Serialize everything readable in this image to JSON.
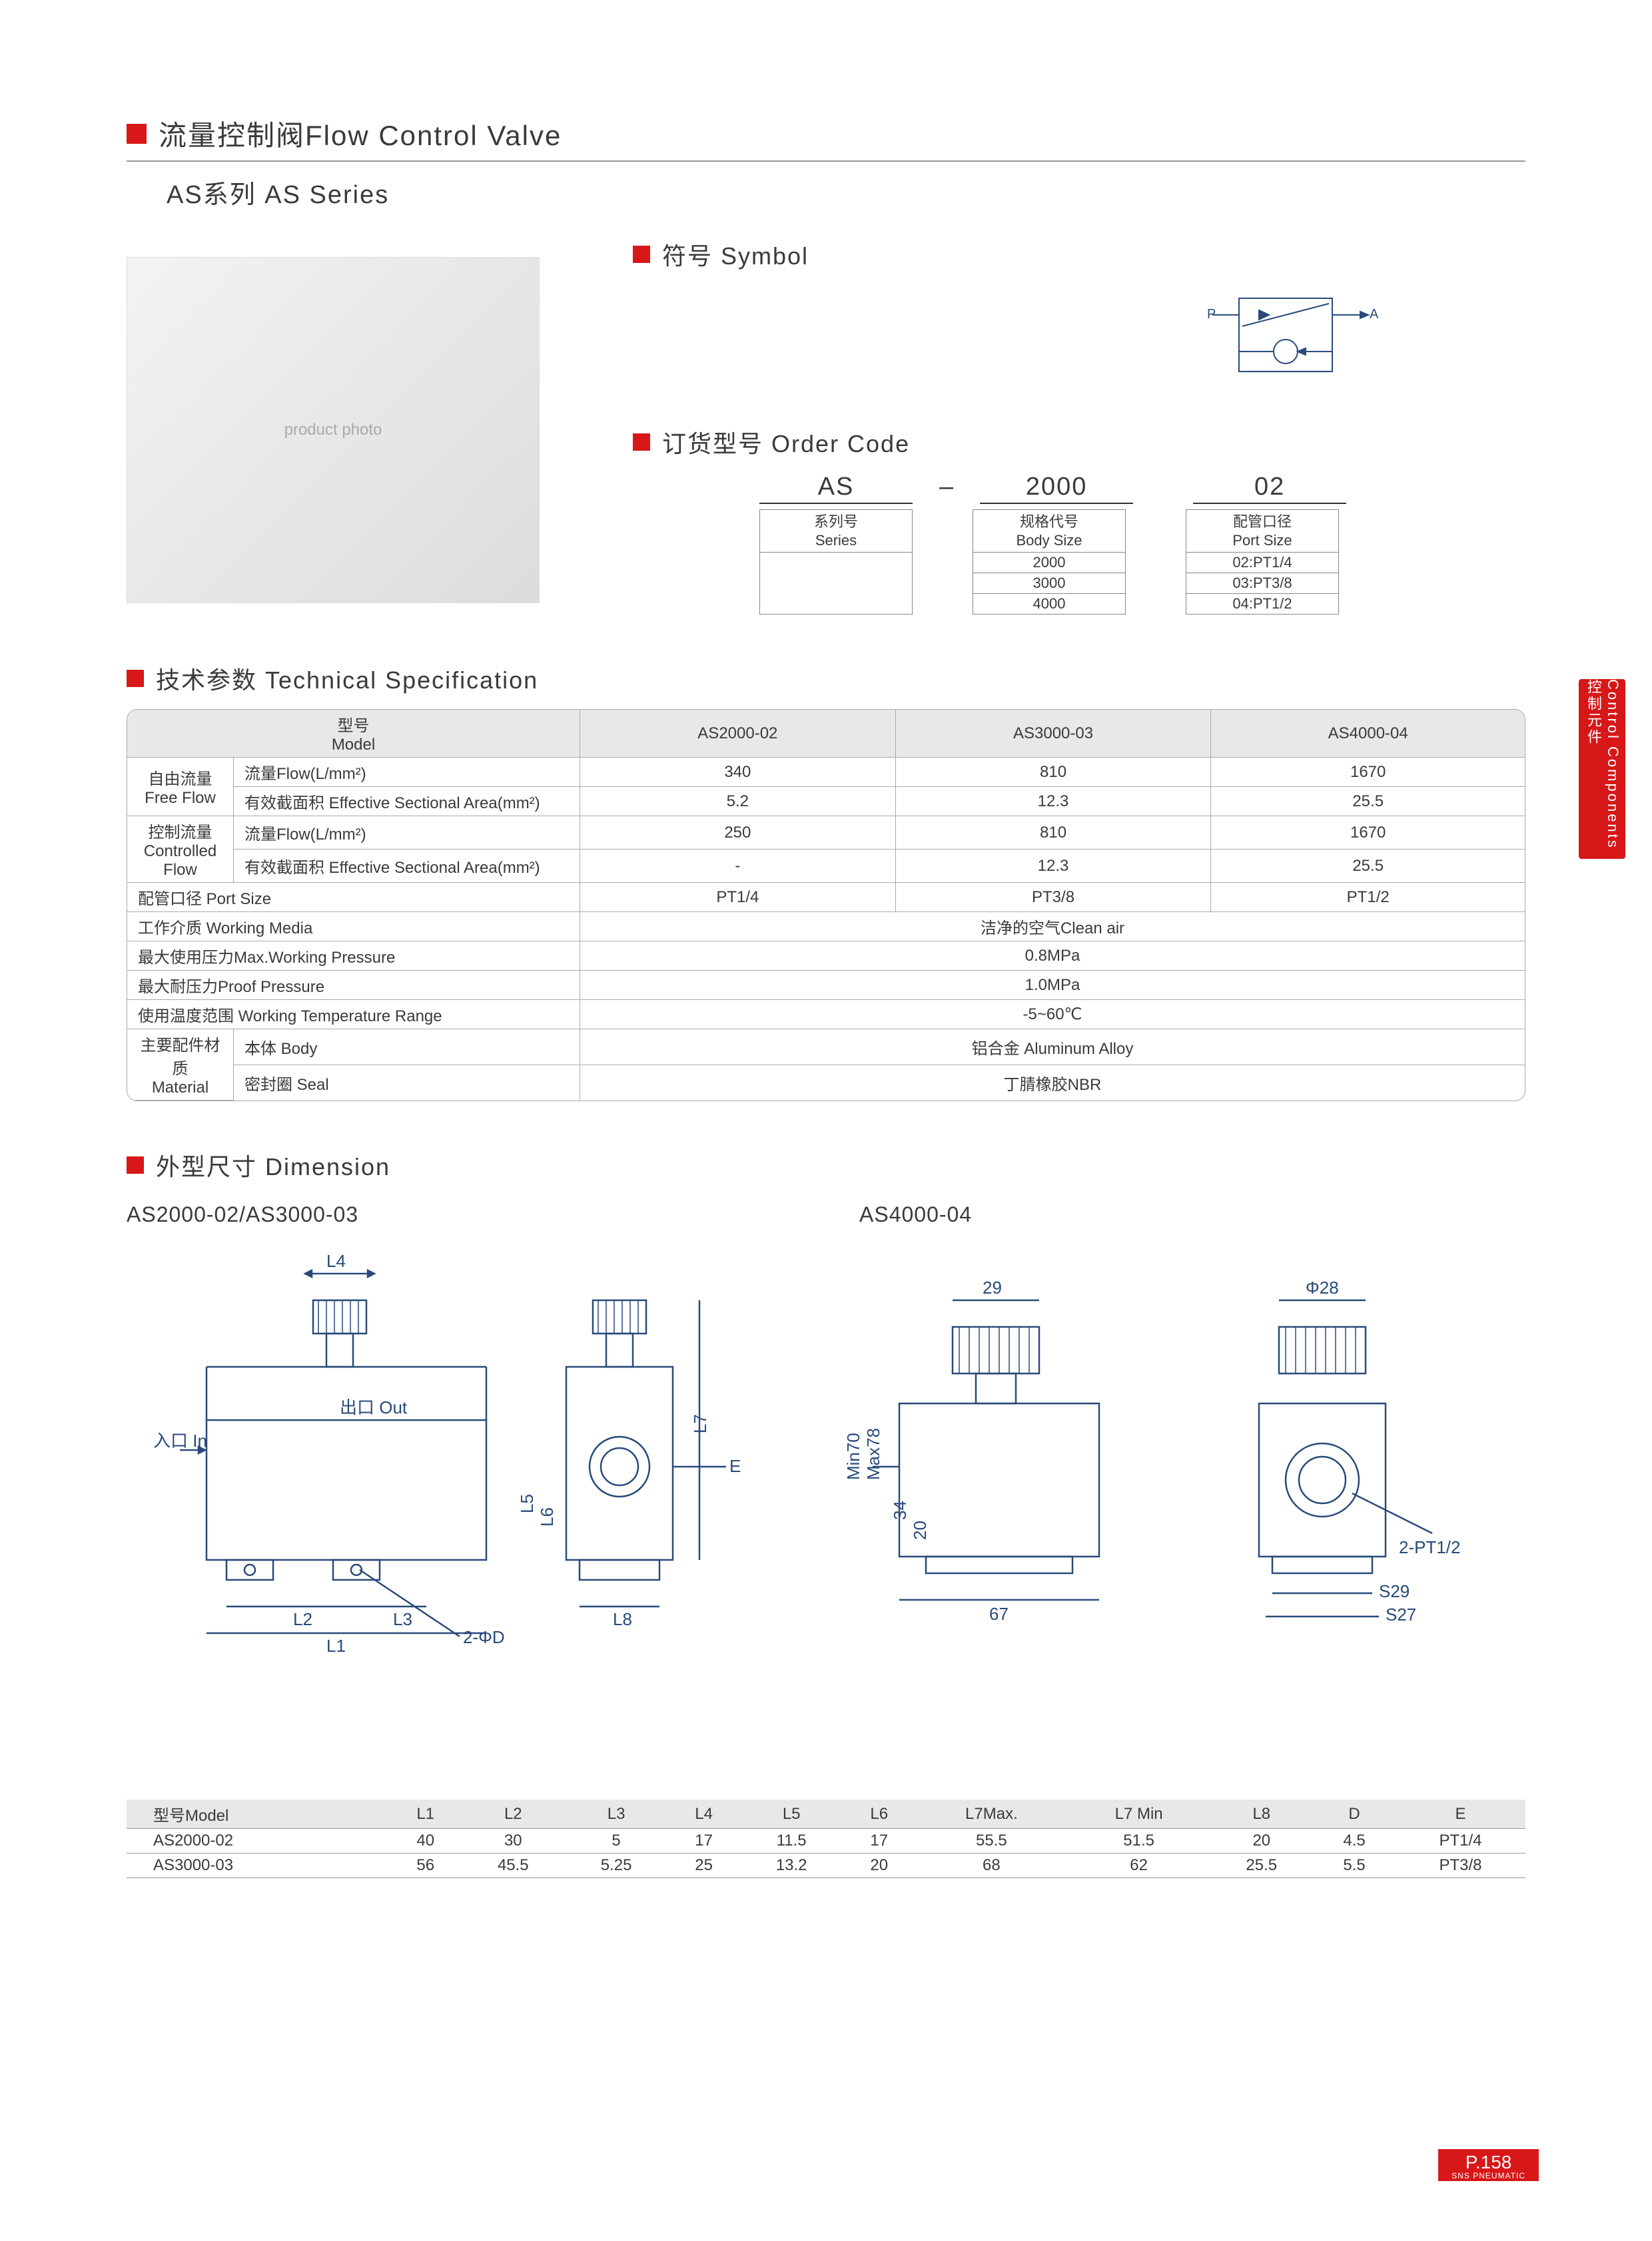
{
  "title": "流量控制阀Flow Control Valve",
  "subseries": "AS系列 AS Series",
  "side_tab": "Control Components 控制元件",
  "sections": {
    "symbol": "符号 Symbol",
    "order": "订货型号 Order Code",
    "spec": "技术参数 Technical Specification",
    "dimension": "外型尺寸 Dimension"
  },
  "symbol_labels": {
    "p": "P",
    "a": "A"
  },
  "order": {
    "example": {
      "series": "AS",
      "dash": "–",
      "body": "2000",
      "port": "02"
    },
    "cols": [
      {
        "hdr": "系列号\nSeries",
        "rows": []
      },
      {
        "hdr": "规格代号\nBody Size",
        "rows": [
          "2000",
          "3000",
          "4000"
        ]
      },
      {
        "hdr": "配管口径\nPort Size",
        "rows": [
          "02:PT1/4",
          "03:PT3/8",
          "04:PT1/2"
        ]
      }
    ]
  },
  "spec": {
    "header_model": "型号\nModel",
    "models": [
      "AS2000-02",
      "AS3000-03",
      "AS4000-04"
    ],
    "group_freeflow": "自由流量\nFree Flow",
    "row_flow": "流量Flow(L/mm²)",
    "row_area": "有效截面积 Effective Sectional Area(mm²)",
    "group_ctrlflow": "控制流量\nControlled\nFlow",
    "row_port": "配管口径 Port Size",
    "row_media": "工作介质 Working Media",
    "row_maxp": "最大使用压力Max.Working Pressure",
    "row_proof": "最大耐压力Proof Pressure",
    "row_temp": "使用温度范围 Working Temperature Range",
    "group_mat": "主要配件材质\nMaterial",
    "row_body": "本体 Body",
    "row_seal": "密封圈 Seal",
    "vals": {
      "free_flow": [
        "340",
        "810",
        "1670"
      ],
      "free_area": [
        "5.2",
        "12.3",
        "25.5"
      ],
      "ctrl_flow": [
        "250",
        "810",
        "1670"
      ],
      "ctrl_area": [
        "-",
        "12.3",
        "25.5"
      ],
      "port": [
        "PT1/4",
        "PT3/8",
        "PT1/2"
      ],
      "media": "洁净的空气Clean air",
      "maxp": "0.8MPa",
      "proof": "1.0MPa",
      "temp": "-5~60℃",
      "body": "铝合金 Aluminum Alloy",
      "seal": "丁腈橡胶NBR"
    }
  },
  "dimension": {
    "left_title": "AS2000-02/AS3000-03",
    "right_title": "AS4000-04",
    "left_labels": {
      "L1": "L1",
      "L2": "L2",
      "L3": "L3",
      "L4": "L4",
      "L5": "L5",
      "L6": "L6",
      "L7": "L7",
      "L8": "L8",
      "E": "E",
      "D": "2-ΦD",
      "In": "入口\nIn",
      "Out": "出口\nOut"
    },
    "right_labels": {
      "w29": "29",
      "phi28": "Φ28",
      "min70": "Min70",
      "max78": "Max78",
      "h34": "34",
      "h20": "20",
      "w67": "67",
      "s29": "S29",
      "s27": "S27",
      "pt": "2-PT1/2"
    }
  },
  "dim_table": {
    "headers": [
      "型号Model",
      "L1",
      "L2",
      "L3",
      "L4",
      "L5",
      "L6",
      "L7Max.",
      "L7 Min",
      "L8",
      "D",
      "E"
    ],
    "rows": [
      [
        "AS2000-02",
        "40",
        "30",
        "5",
        "17",
        "11.5",
        "17",
        "55.5",
        "51.5",
        "20",
        "4.5",
        "PT1/4"
      ],
      [
        "AS3000-03",
        "56",
        "45.5",
        "5.25",
        "25",
        "13.2",
        "20",
        "68",
        "62",
        "25.5",
        "5.5",
        "PT3/8"
      ]
    ]
  },
  "footer": {
    "page": "P.158",
    "brand": "SNS PNEUMATIC"
  },
  "colors": {
    "accent": "#d71718",
    "text": "#3a3a3a",
    "diagram_stroke": "#294a7a",
    "header_bg": "#e8e8e8",
    "border": "#aaaaaa"
  }
}
